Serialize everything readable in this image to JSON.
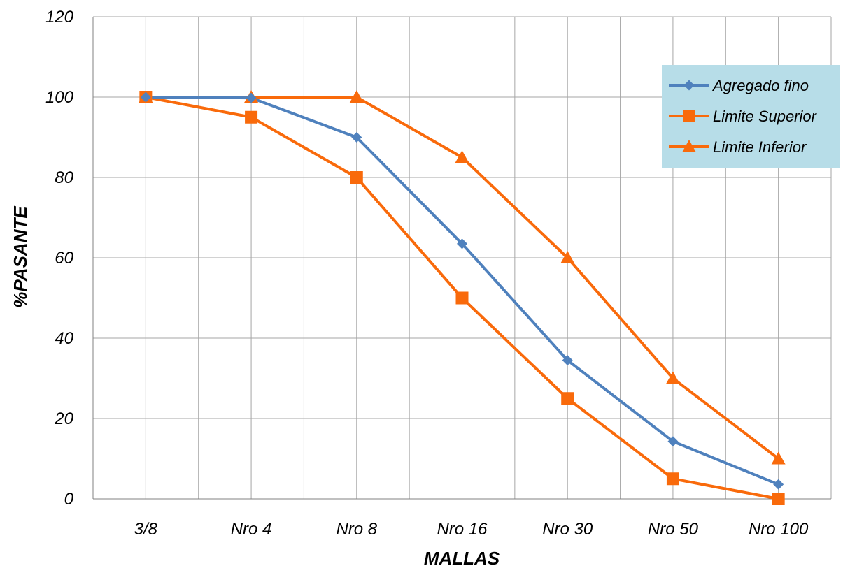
{
  "chart_data": {
    "type": "line",
    "categories": [
      "3/8",
      "Nro 4",
      "Nro 8",
      "Nro 16",
      "Nro 30",
      "Nro 50",
      "Nro 100"
    ],
    "series": [
      {
        "name": "Agregado fino",
        "values": [
          100,
          99.8,
          90,
          63.5,
          34.5,
          14.3,
          3.6
        ],
        "color": "#4f81bd",
        "marker": "diamond"
      },
      {
        "name": "Limite Superior",
        "values": [
          100,
          95,
          80,
          50,
          25,
          5,
          0
        ],
        "color": "#f96a0b",
        "marker": "square"
      },
      {
        "name": "Limite Inferior",
        "values": [
          100,
          100,
          100,
          85,
          60,
          30,
          10
        ],
        "color": "#f96a0b",
        "marker": "triangle"
      }
    ],
    "xlabel": "MALLAS",
    "ylabel": "%PASANTE",
    "ylim": [
      0,
      120
    ],
    "yticks": [
      0,
      20,
      40,
      60,
      80,
      100,
      120
    ],
    "grid": true,
    "legend_position": "top-right",
    "legend_background": "#b7dde8"
  }
}
